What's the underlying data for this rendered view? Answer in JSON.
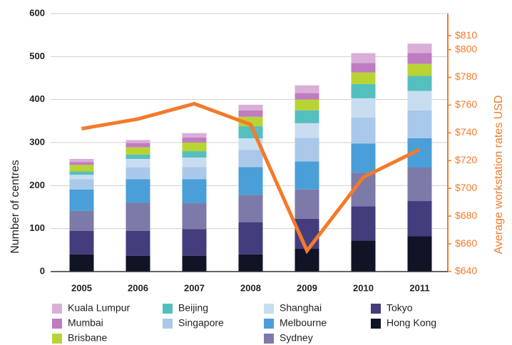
{
  "chart_data": {
    "type": "bar",
    "stacked": true,
    "ylabel": "Number of centres",
    "y2label": "Average workstation rates USD",
    "categories": [
      "2005",
      "2006",
      "2007",
      "2008",
      "2009",
      "2010",
      "2011"
    ],
    "ylim": [
      0,
      600
    ],
    "yticks": [
      0,
      100,
      200,
      300,
      400,
      500,
      600
    ],
    "grid": true,
    "y2lim": [
      640,
      826
    ],
    "y2ticks": [
      {
        "value": 640,
        "label": "$640"
      },
      {
        "value": 660,
        "label": "$660"
      },
      {
        "value": 680,
        "label": "$680"
      },
      {
        "value": 700,
        "label": "$700"
      },
      {
        "value": 720,
        "label": "$720"
      },
      {
        "value": 740,
        "label": "$740"
      },
      {
        "value": 760,
        "label": "$760"
      },
      {
        "value": 780,
        "label": "$780"
      },
      {
        "value": 800,
        "label": "$800"
      },
      {
        "value": 810,
        "label": "$810"
      }
    ],
    "series": [
      {
        "name": "Hong Kong",
        "color": "#111327",
        "values": [
          40,
          37,
          37,
          40,
          53,
          72,
          82
        ]
      },
      {
        "name": "Tokyo",
        "color": "#433d7d",
        "values": [
          55,
          58,
          62,
          75,
          70,
          80,
          82
        ]
      },
      {
        "name": "Sydney",
        "color": "#7c7aa8",
        "values": [
          46,
          65,
          60,
          63,
          68,
          78,
          78
        ]
      },
      {
        "name": "Melbourne",
        "color": "#4a9fd8",
        "values": [
          50,
          55,
          56,
          65,
          65,
          68,
          68
        ]
      },
      {
        "name": "Singapore",
        "color": "#a9c8ea",
        "values": [
          24,
          27,
          28,
          40,
          55,
          60,
          65
        ]
      },
      {
        "name": "Shanghai",
        "color": "#c9ddf0",
        "values": [
          10,
          20,
          22,
          27,
          34,
          45,
          45
        ]
      },
      {
        "name": "Beijing",
        "color": "#55bfbf",
        "values": [
          8,
          10,
          15,
          28,
          30,
          33,
          35
        ]
      },
      {
        "name": "Brisbane",
        "color": "#b8d433",
        "values": [
          15,
          17,
          20,
          22,
          25,
          27,
          28
        ]
      },
      {
        "name": "Mumbai",
        "color": "#c07cc0",
        "values": [
          7,
          10,
          12,
          15,
          15,
          22,
          25
        ]
      },
      {
        "name": "Kuala Lumpur",
        "color": "#d9aed9",
        "values": [
          7,
          7,
          10,
          13,
          18,
          23,
          22
        ]
      },
      {
        "type": "line",
        "axis": "y2",
        "color": "#f47a2a",
        "values": [
          743,
          750,
          761,
          746,
          655,
          708,
          728
        ]
      }
    ]
  }
}
